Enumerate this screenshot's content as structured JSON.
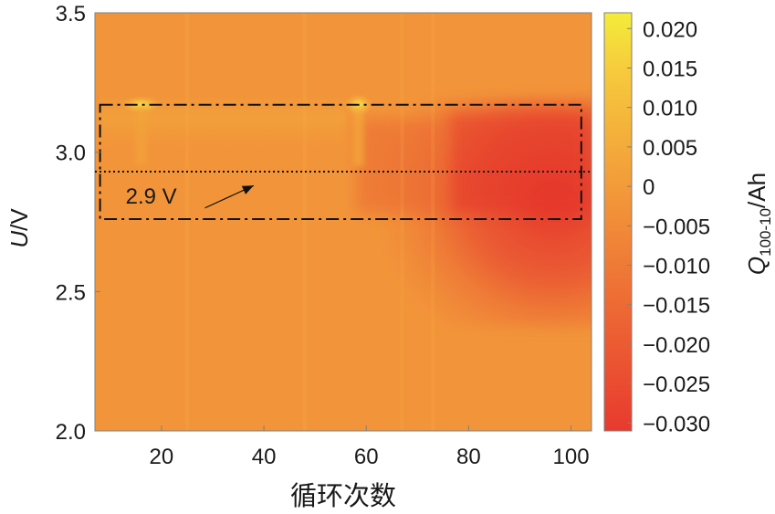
{
  "chart_data": {
    "type": "heatmap",
    "xlabel": "循环次数",
    "ylabel_italic": "U",
    "ylabel_unit": "/V",
    "colorbar_label_main": "Q",
    "colorbar_label_sub": "100-10",
    "colorbar_label_unit": "/Ah",
    "x_ticks": [
      20,
      40,
      60,
      80,
      100
    ],
    "x_tick_labels": [
      "20",
      "40",
      "60",
      "80",
      "100"
    ],
    "y_ticks": [
      2.0,
      2.5,
      3.0,
      3.5
    ],
    "y_tick_labels": [
      "2.0",
      "2.5",
      "3.0",
      "3.5"
    ],
    "xlim": [
      7,
      104
    ],
    "ylim": [
      2.0,
      3.5
    ],
    "colorbar_ticks": [
      0.02,
      0.015,
      0.01,
      0.005,
      0,
      -0.005,
      -0.01,
      -0.015,
      -0.02,
      -0.025,
      -0.03
    ],
    "colorbar_tick_labels": [
      "0.020",
      "0.015",
      "0.010",
      "0.005",
      "0",
      "−0.005",
      "−0.010",
      "−0.015",
      "−0.020",
      "−0.025",
      "−0.030"
    ],
    "colorbar_range": [
      -0.031,
      0.022
    ],
    "colormap_colors": [
      "#e83a2e",
      "#ed6a34",
      "#f29a3a",
      "#f6c83c",
      "#f4ec3a"
    ],
    "highlight_box": {
      "x_range": [
        8,
        102
      ],
      "y_range": [
        2.76,
        3.17
      ]
    },
    "reference_line": {
      "y": 2.93,
      "label": "2.9 V",
      "arrow_tip": {
        "x": 38,
        "y": 2.88
      }
    },
    "hotspots": [
      {
        "x": 16,
        "y": 3.17,
        "value": 0.012
      },
      {
        "x": 58.5,
        "y": 3.17,
        "value": 0.02
      }
    ],
    "cold_region": {
      "x_range": [
        70,
        104
      ],
      "y_range": [
        2.6,
        3.16
      ],
      "value": -0.029
    }
  }
}
